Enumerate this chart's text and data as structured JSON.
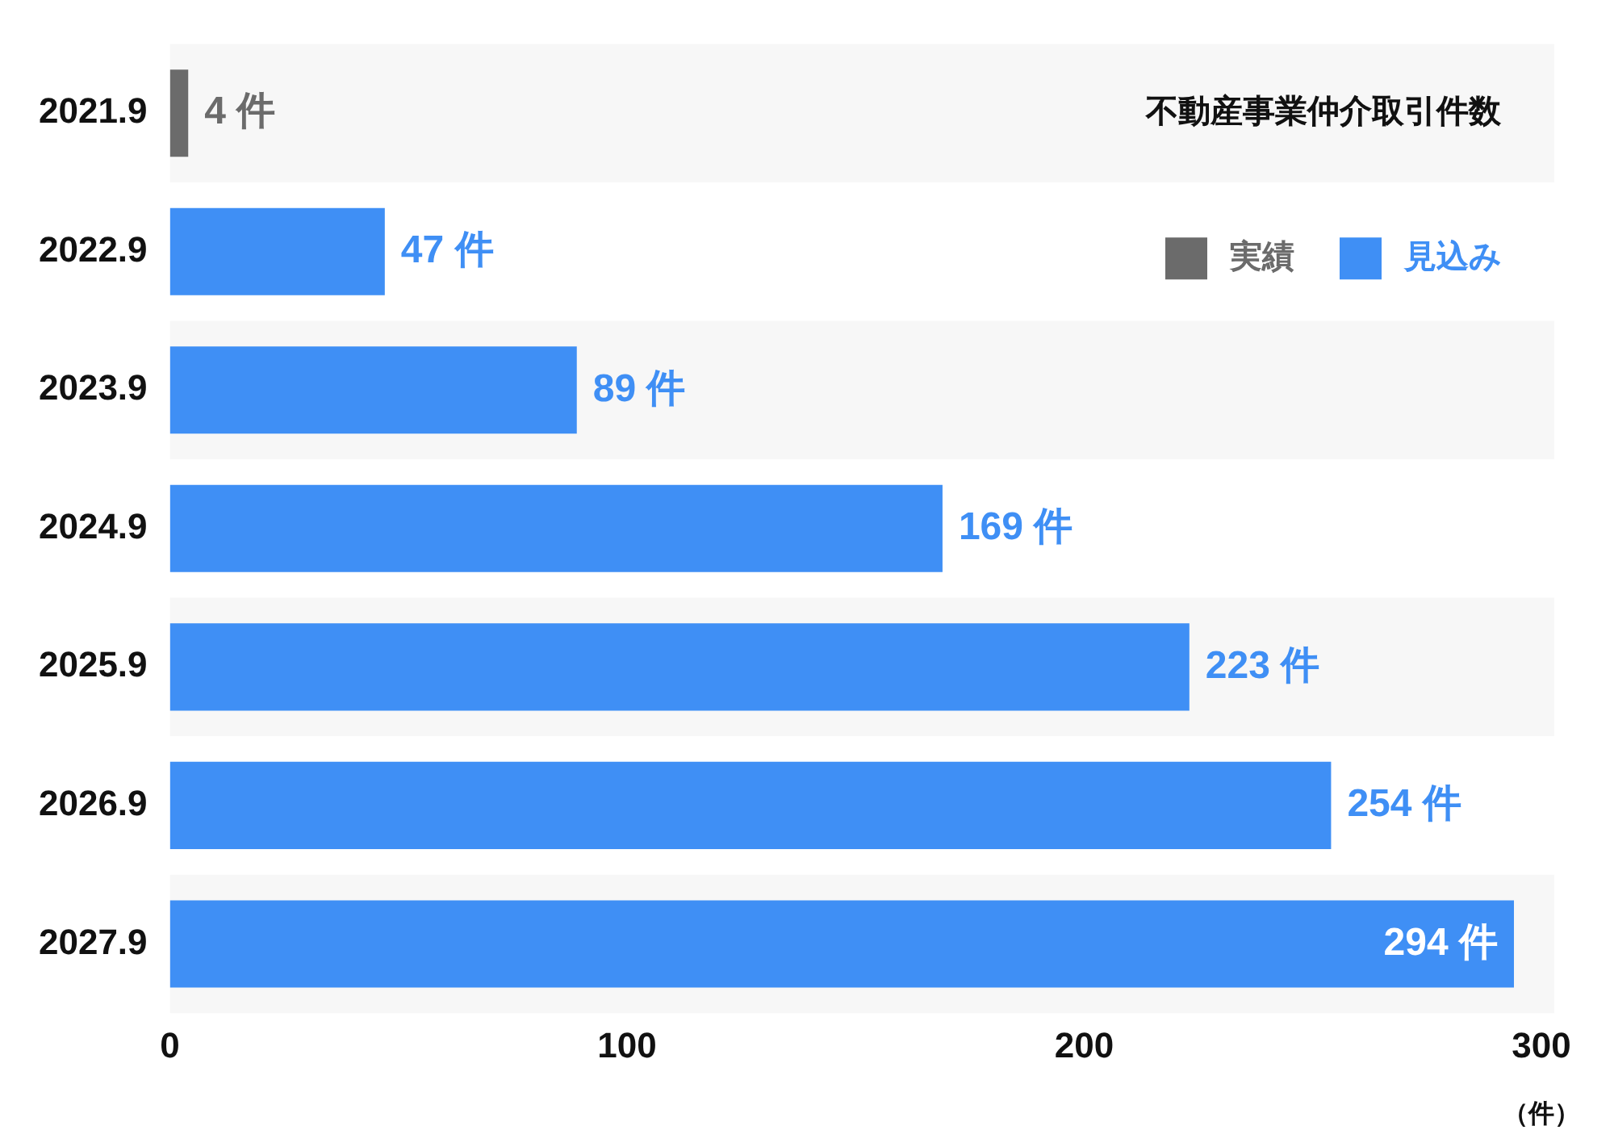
{
  "chart_data": {
    "type": "bar",
    "orientation": "horizontal",
    "title": "不動産事業仲介取引件数",
    "xlabel": "（件）",
    "legend": "top right",
    "grid": false,
    "categories": [
      "2021.9",
      "2022.9",
      "2023.9",
      "2024.9",
      "2025.9",
      "2026.9",
      "2027.9"
    ],
    "series": [
      {
        "name": "実績",
        "color": "#6b6b6b",
        "values": [
          4,
          null,
          null,
          null,
          null,
          null,
          null
        ],
        "value_labels": [
          "4 件",
          null,
          null,
          null,
          null,
          null,
          null
        ]
      },
      {
        "name": "見込み",
        "color": "#3f8ff5",
        "values": [
          null,
          47,
          89,
          169,
          223,
          254,
          294
        ],
        "value_labels": [
          null,
          "47 件",
          "89 件",
          "169 件",
          "223 件",
          "254 件",
          "294 件"
        ]
      }
    ],
    "xlim": [
      0,
      300
    ],
    "xticks": [
      0,
      100,
      200,
      300
    ]
  }
}
